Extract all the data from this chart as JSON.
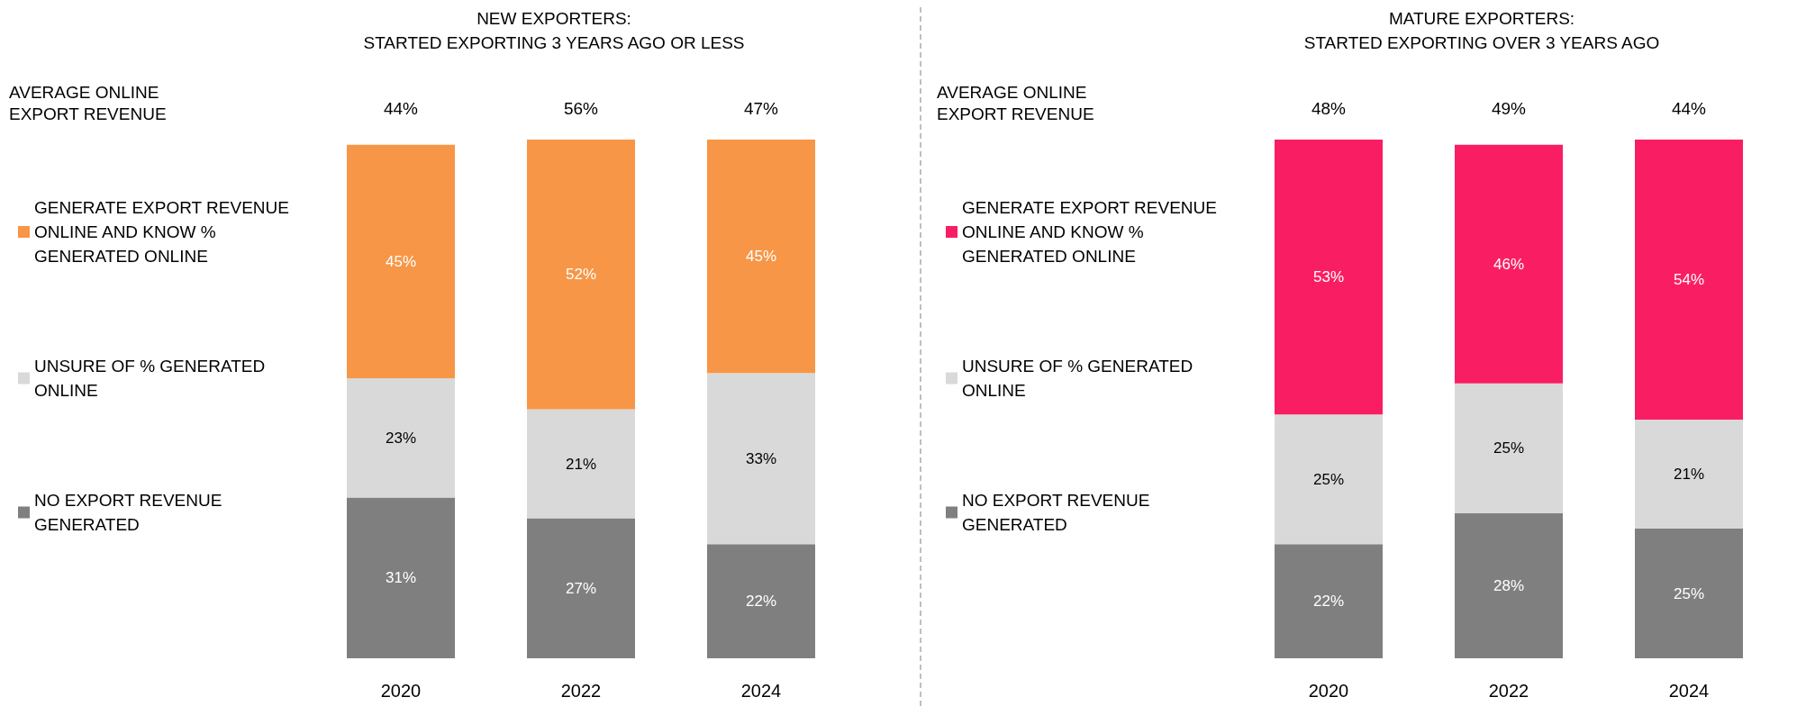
{
  "chart_data": [
    {
      "type": "bar",
      "title": "NEW EXPORTERS:",
      "subtitle": "STARTED EXPORTING 3 YEARS AGO OR LESS",
      "categories": [
        "2020",
        "2022",
        "2024"
      ],
      "stacked": true,
      "legend": "left",
      "tick_labels": "x",
      "annotations": [
        "AVERAGE ONLINE EXPORT REVENUE",
        "44%",
        "56%",
        "47%"
      ],
      "series": [
        {
          "name": "NO EXPORT REVENUE GENERATED",
          "color": "#7f7f7f",
          "values": [
            31,
            27,
            22
          ],
          "value_labels": [
            "31%",
            "27%",
            "22%"
          ]
        },
        {
          "name": "UNSURE OF % GENERATED ONLINE",
          "color": "#d9d9d9",
          "values": [
            23,
            21,
            33
          ],
          "value_labels": [
            "23%",
            "21%",
            "33%"
          ]
        },
        {
          "name": "GENERATE EXPORT REVENUE ONLINE AND KNOW % GENERATED ONLINE",
          "color": "#f79646",
          "values": [
            45,
            52,
            45
          ],
          "value_labels": [
            "45%",
            "52%",
            "45%"
          ]
        }
      ]
    },
    {
      "type": "bar",
      "title": "MATURE EXPORTERS:",
      "subtitle": "STARTED EXPORTING OVER 3 YEARS AGO",
      "categories": [
        "2020",
        "2022",
        "2024"
      ],
      "stacked": true,
      "legend": "left",
      "tick_labels": "x",
      "annotations": [
        "AVERAGE ONLINE EXPORT REVENUE",
        "48%",
        "49%",
        "44%"
      ],
      "series": [
        {
          "name": "NO EXPORT REVENUE GENERATED",
          "color": "#7f7f7f",
          "values": [
            22,
            28,
            25
          ],
          "value_labels": [
            "22%",
            "28%",
            "25%"
          ]
        },
        {
          "name": "UNSURE OF % GENERATED ONLINE",
          "color": "#d9d9d9",
          "values": [
            25,
            25,
            21
          ],
          "value_labels": [
            "25%",
            "25%",
            "21%"
          ]
        },
        {
          "name": "GENERATE EXPORT REVENUE ONLINE AND KNOW % GENERATED ONLINE",
          "color": "#f91e63",
          "values": [
            53,
            46,
            54
          ],
          "value_labels": [
            "53%",
            "46%",
            "54%"
          ]
        }
      ]
    }
  ]
}
